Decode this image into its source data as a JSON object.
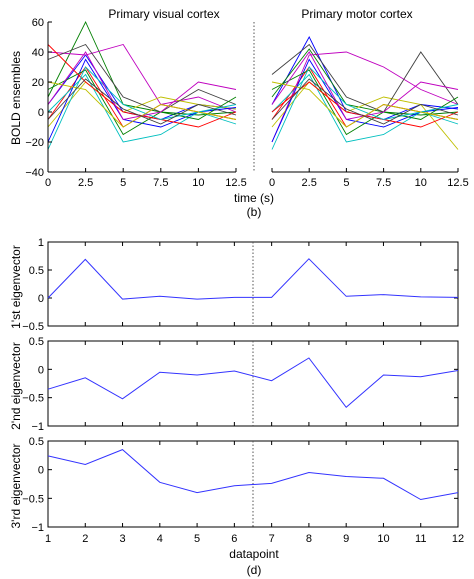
{
  "chart_data": [
    {
      "type": "line",
      "panel_label": "(b)",
      "xlabel": "time (s)",
      "ylabel": "BOLD ensembles",
      "ylim": [
        -40,
        60
      ],
      "yticks": [
        -40,
        -20,
        0,
        20,
        40,
        60
      ],
      "xticks": [
        0,
        2.5,
        5,
        7.5,
        10,
        12.5
      ],
      "subplots": [
        {
          "title": "Primary visual cortex",
          "x": [
            0,
            2.5,
            5,
            7.5,
            10,
            12.5
          ],
          "series": [
            {
              "color": "#0000ff",
              "values": [
                5,
                38,
                0,
                -5,
                5,
                2
              ]
            },
            {
              "color": "#007f00",
              "values": [
                10,
                60,
                5,
                0,
                -2,
                0
              ]
            },
            {
              "color": "#ff0000",
              "values": [
                -5,
                30,
                -10,
                5,
                0,
                -5
              ]
            },
            {
              "color": "#00bfbf",
              "values": [
                0,
                25,
                -20,
                -15,
                0,
                -8
              ]
            },
            {
              "color": "#bf00bf",
              "values": [
                40,
                38,
                45,
                5,
                10,
                0
              ]
            },
            {
              "color": "#bfbf00",
              "values": [
                -10,
                20,
                0,
                10,
                5,
                2
              ]
            },
            {
              "color": "#404040",
              "values": [
                35,
                45,
                10,
                0,
                15,
                5
              ]
            },
            {
              "color": "#0000ff",
              "values": [
                -20,
                35,
                -5,
                -10,
                0,
                3
              ]
            },
            {
              "color": "#007f00",
              "values": [
                15,
                28,
                -15,
                0,
                -5,
                10
              ]
            },
            {
              "color": "#ff0000",
              "values": [
                45,
                20,
                0,
                -5,
                -10,
                0
              ]
            },
            {
              "color": "#00bfbf",
              "values": [
                -25,
                30,
                5,
                -5,
                0,
                5
              ]
            },
            {
              "color": "#bf00bf",
              "values": [
                5,
                40,
                -5,
                0,
                20,
                15
              ]
            },
            {
              "color": "#bfbf00",
              "values": [
                20,
                15,
                -10,
                5,
                0,
                -5
              ]
            },
            {
              "color": "#404040",
              "values": [
                -5,
                22,
                2,
                -8,
                5,
                -2
              ]
            }
          ]
        },
        {
          "title": "Primary motor cortex",
          "x": [
            0,
            2.5,
            5,
            7.5,
            10,
            12.5
          ],
          "series": [
            {
              "color": "#0000ff",
              "values": [
                5,
                50,
                0,
                -5,
                5,
                2
              ]
            },
            {
              "color": "#007f00",
              "values": [
                10,
                42,
                5,
                0,
                -2,
                0
              ]
            },
            {
              "color": "#ff0000",
              "values": [
                -5,
                30,
                -10,
                5,
                0,
                -5
              ]
            },
            {
              "color": "#00bfbf",
              "values": [
                0,
                25,
                -20,
                -15,
                0,
                -8
              ]
            },
            {
              "color": "#bf00bf",
              "values": [
                -20,
                38,
                40,
                30,
                15,
                5
              ]
            },
            {
              "color": "#bfbf00",
              "values": [
                -10,
                20,
                0,
                10,
                5,
                -25
              ]
            },
            {
              "color": "#404040",
              "values": [
                25,
                45,
                10,
                0,
                40,
                5
              ]
            },
            {
              "color": "#0000ff",
              "values": [
                -20,
                35,
                -5,
                -10,
                0,
                3
              ]
            },
            {
              "color": "#007f00",
              "values": [
                15,
                28,
                -15,
                0,
                -5,
                10
              ]
            },
            {
              "color": "#ff0000",
              "values": [
                0,
                20,
                0,
                -5,
                -10,
                0
              ]
            },
            {
              "color": "#00bfbf",
              "values": [
                -25,
                30,
                5,
                -5,
                0,
                5
              ]
            },
            {
              "color": "#bf00bf",
              "values": [
                5,
                40,
                -5,
                0,
                20,
                15
              ]
            },
            {
              "color": "#bfbf00",
              "values": [
                20,
                15,
                -10,
                5,
                0,
                -5
              ]
            },
            {
              "color": "#404040",
              "values": [
                -5,
                22,
                2,
                -8,
                5,
                -2
              ]
            }
          ]
        }
      ]
    },
    {
      "type": "line",
      "panel_label": "(d)",
      "xlabel": "datapoint",
      "x": [
        1,
        2,
        3,
        4,
        5,
        6,
        7,
        8,
        9,
        10,
        11,
        12
      ],
      "xticks": [
        1,
        2,
        3,
        4,
        5,
        6,
        7,
        8,
        9,
        10,
        11,
        12
      ],
      "divider_x": 6.5,
      "line_color": "#3333ff",
      "subplots": [
        {
          "ylabel": "1'st eigenvector",
          "ylim": [
            -0.5,
            1
          ],
          "yticks": [
            -0.5,
            0,
            0.5,
            1
          ],
          "ytick_labels": [
            "−0.5",
            "0",
            "0.5",
            "1"
          ],
          "values": [
            0.0,
            0.69,
            -0.02,
            0.03,
            -0.02,
            0.01,
            0.01,
            0.7,
            0.03,
            0.06,
            0.02,
            0.01
          ]
        },
        {
          "ylabel": "2'nd eigenvector",
          "ylim": [
            -1,
            0.5
          ],
          "yticks": [
            -1,
            -0.5,
            0,
            0.5
          ],
          "ytick_labels": [
            "−1",
            "−0.5",
            "0",
            "0.5"
          ],
          "values": [
            -0.35,
            -0.15,
            -0.52,
            -0.05,
            -0.1,
            -0.03,
            -0.2,
            0.2,
            -0.67,
            -0.1,
            -0.13,
            -0.02
          ]
        },
        {
          "ylabel": "3'rd eigenvector",
          "ylim": [
            -1,
            0.5
          ],
          "yticks": [
            -1,
            -0.5,
            0,
            0.5
          ],
          "ytick_labels": [
            "−1",
            "−0.5",
            "0",
            "0.5"
          ],
          "values": [
            0.24,
            0.09,
            0.35,
            -0.22,
            -0.4,
            -0.28,
            -0.24,
            -0.05,
            -0.12,
            -0.15,
            -0.52,
            -0.4
          ]
        }
      ]
    }
  ]
}
